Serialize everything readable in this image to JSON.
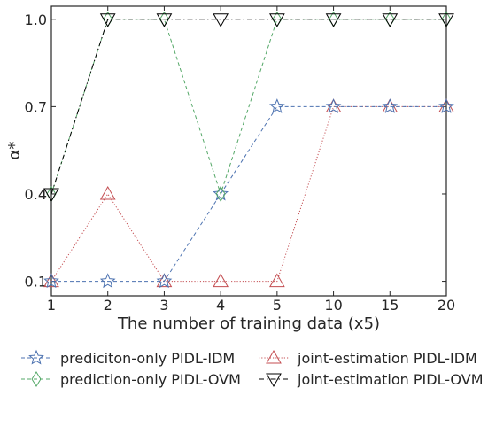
{
  "chart_data": {
    "type": "line",
    "title": "",
    "xlabel": "The number of training data (x5)",
    "ylabel": "α*",
    "categories": [
      "1",
      "2",
      "3",
      "4",
      "5",
      "10",
      "15",
      "20"
    ],
    "y_ticks": [
      "0.1",
      "0.4",
      "0.7",
      "1.0"
    ],
    "ylim": [
      0.05,
      1.045
    ],
    "grid": false,
    "legend_position": "bottom",
    "series": [
      {
        "name": "prediciton-only PIDL-IDM",
        "values": [
          0.1,
          0.1,
          0.1,
          0.4,
          0.7,
          0.7,
          0.7,
          0.7
        ],
        "color": "#4c72b0",
        "marker": "star",
        "dash": "dashed"
      },
      {
        "name": "prediction-only PIDL-OVM",
        "values": [
          0.4,
          1.0,
          1.0,
          0.4,
          1.0,
          1.0,
          1.0,
          1.0
        ],
        "color": "#55a868",
        "marker": "diamond",
        "dash": "dashed"
      },
      {
        "name": "joint-estimation PIDL-IDM",
        "values": [
          0.1,
          0.4,
          0.1,
          0.1,
          0.1,
          0.7,
          0.7,
          0.7
        ],
        "color": "#c44e52",
        "marker": "triangle-up",
        "dash": "dotted"
      },
      {
        "name": "joint-estimation PIDL-OVM",
        "values": [
          0.4,
          1.0,
          1.0,
          1.0,
          1.0,
          1.0,
          1.0,
          1.0
        ],
        "color": "#000000",
        "marker": "triangle-down",
        "dash": "dashdot"
      }
    ]
  }
}
